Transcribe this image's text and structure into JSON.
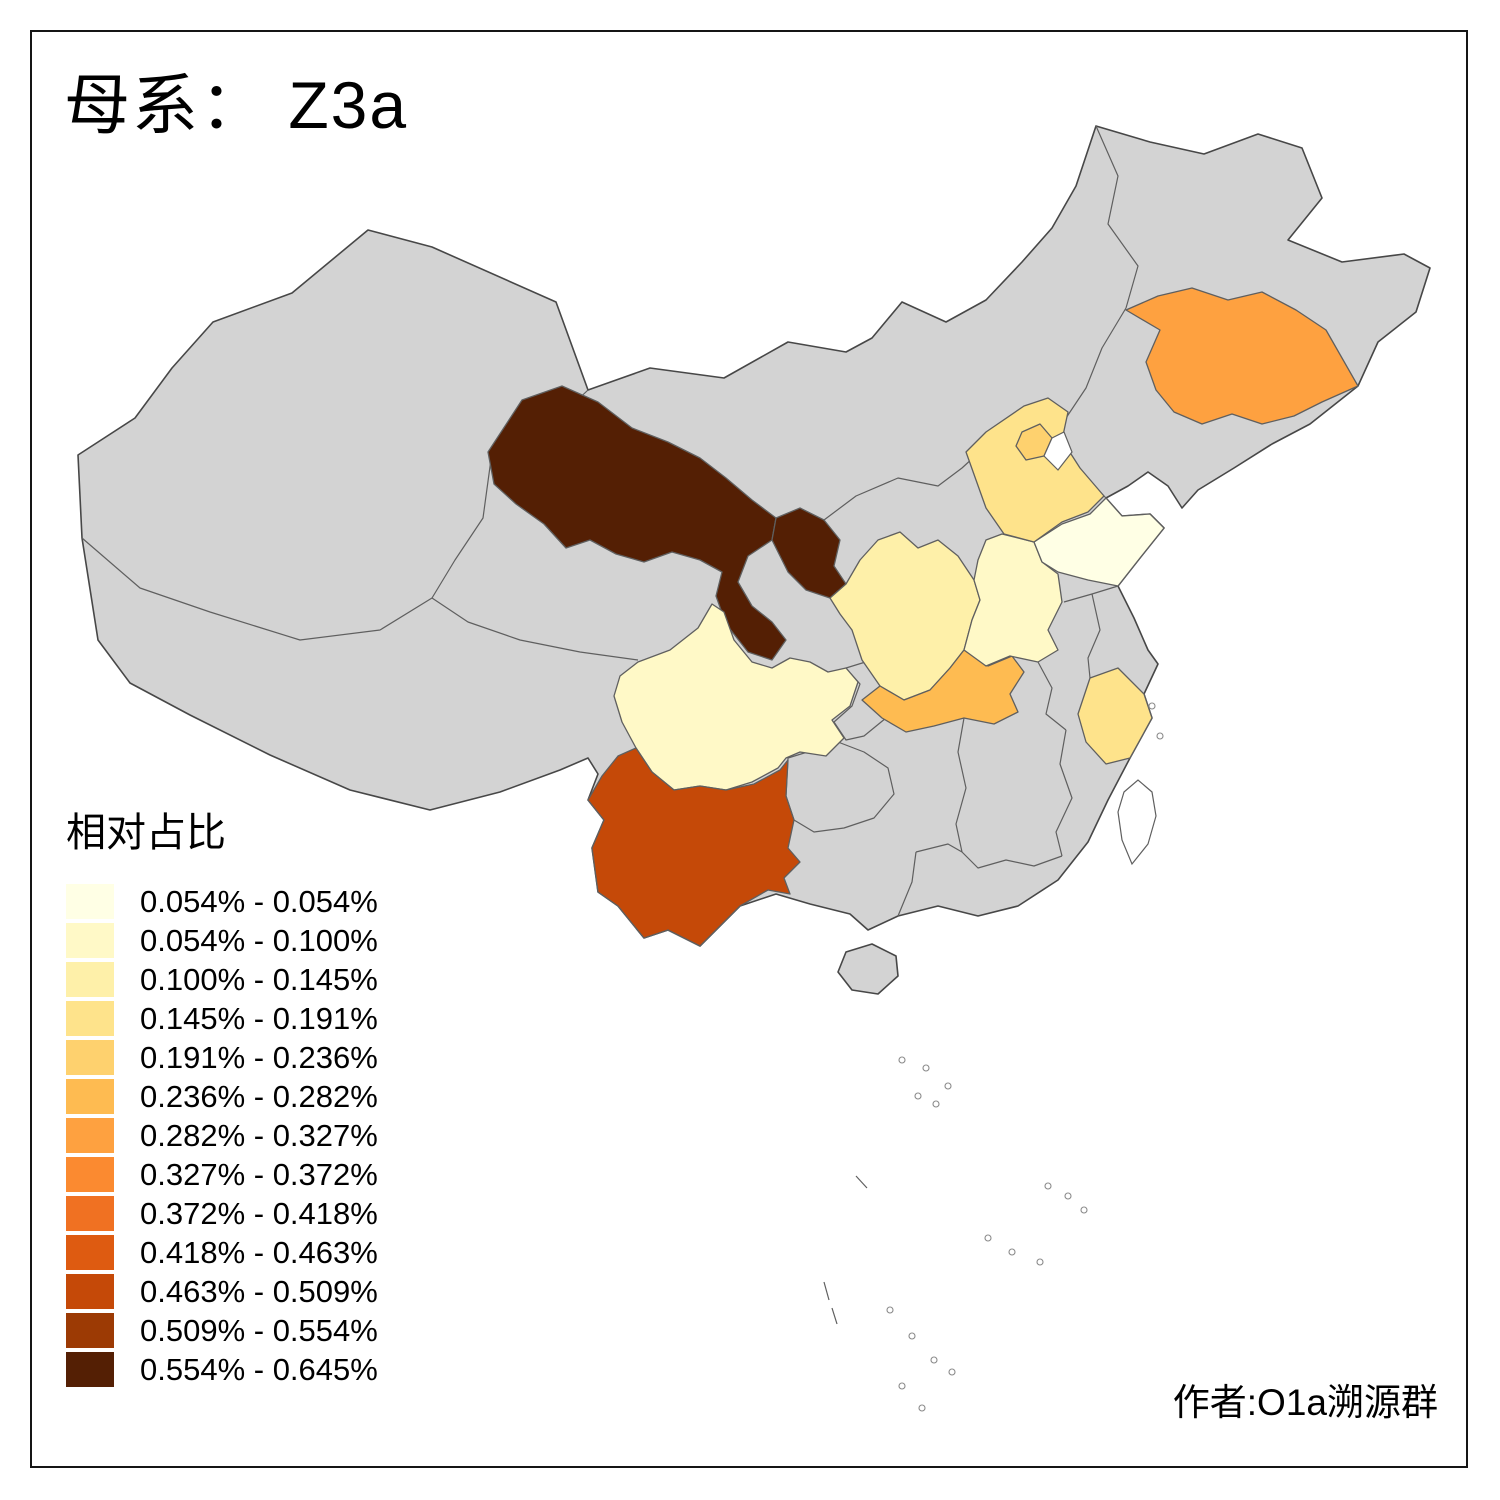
{
  "title": "母系： Z3a",
  "legend": {
    "title": "相对占比",
    "items": [
      {
        "label": "0.054% - 0.054%",
        "color": "#FFFFE5"
      },
      {
        "label": "0.054% - 0.100%",
        "color": "#FFF9C7"
      },
      {
        "label": "0.100% - 0.145%",
        "color": "#FEF0A9"
      },
      {
        "label": "0.145% - 0.191%",
        "color": "#FEE38B"
      },
      {
        "label": "0.191% - 0.236%",
        "color": "#FED16E"
      },
      {
        "label": "0.236% - 0.282%",
        "color": "#FEBB51"
      },
      {
        "label": "0.282% - 0.327%",
        "color": "#FEA140"
      },
      {
        "label": "0.327% - 0.372%",
        "color": "#FB8A30"
      },
      {
        "label": "0.372% - 0.418%",
        "color": "#F07122"
      },
      {
        "label": "0.418% - 0.463%",
        "color": "#DE5B11"
      },
      {
        "label": "0.463% - 0.509%",
        "color": "#C54908"
      },
      {
        "label": "0.509% - 0.554%",
        "color": "#9C3A04"
      },
      {
        "label": "0.554% - 0.645%",
        "color": "#541F04"
      }
    ]
  },
  "attribution": "作者:O1a溯源群",
  "map": {
    "base_fill": "#d3d3d3",
    "outline_color": "#474747",
    "border_color": "#5f5f5f",
    "no_data_fill": "#ffffff",
    "regions": [
      {
        "id": "gansu",
        "range": "0.554% - 0.645%",
        "color": "#541F04"
      },
      {
        "id": "ningxia",
        "range": "0.554% - 0.645%",
        "color": "#541F04"
      },
      {
        "id": "yunnan",
        "range": "0.463% - 0.509%",
        "color": "#C54908"
      },
      {
        "id": "jilin",
        "range": "0.282% - 0.327%",
        "color": "#FEA140"
      },
      {
        "id": "hubei",
        "range": "0.236% - 0.282%",
        "color": "#FEBB51"
      },
      {
        "id": "beijing",
        "range": "0.191% - 0.236%",
        "color": "#FED16E"
      },
      {
        "id": "hebei",
        "range": "0.145% - 0.191%",
        "color": "#FEE38B"
      },
      {
        "id": "zhejiang",
        "range": "0.145% - 0.191%",
        "color": "#FEE38B"
      },
      {
        "id": "shaanxi",
        "range": "0.100% - 0.145%",
        "color": "#FEF0A9"
      },
      {
        "id": "sichuan",
        "range": "0.054% - 0.100%",
        "color": "#FFF9C7"
      },
      {
        "id": "henan",
        "range": "0.054% - 0.100%",
        "color": "#FFF9C7"
      },
      {
        "id": "shandong",
        "range": "0.054% - 0.054%",
        "color": "#FFFFE5"
      }
    ]
  }
}
